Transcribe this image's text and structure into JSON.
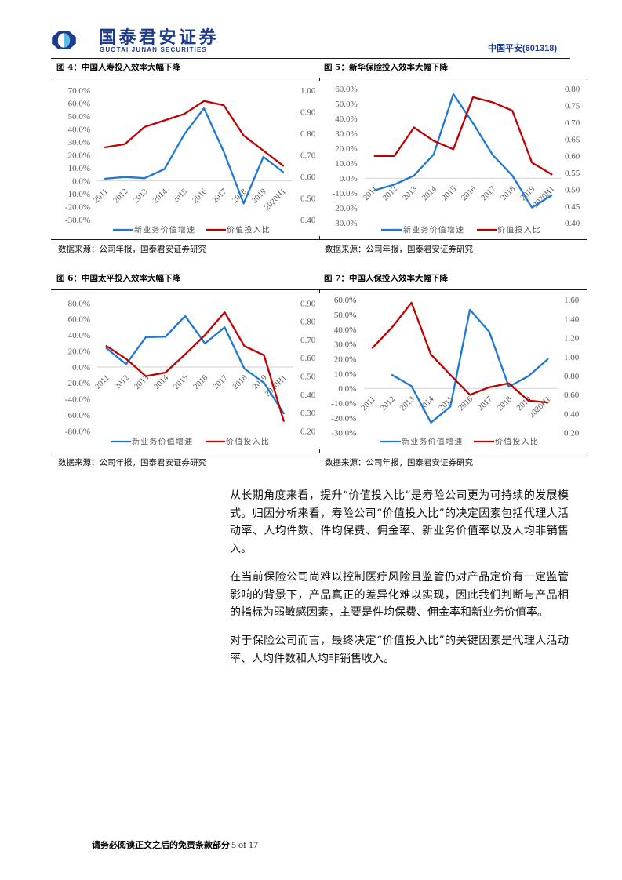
{
  "header": {
    "logo_icon": "guotai-junan-logo-icon",
    "brand_cn": "国泰君安证券",
    "brand_en": "GUOTAI JUNAN SECURITIES",
    "stock": "中国平安(601318)"
  },
  "colors": {
    "brand_navy": "#1d3c8f",
    "brand_light_blue": "#5bbde6",
    "series_blue": "#1f78d1",
    "series_red": "#c00000",
    "axis_text": "#595959",
    "zero_line": "#d9d9d9"
  },
  "figures": [
    {
      "title": "图 4：中国人寿投入效率大幅下降",
      "source": "数据来源：公司年报，国泰君安证券研究"
    },
    {
      "title": "图 5：新华保险投入效率大幅下降",
      "source": "数据来源：公司年报，国泰君安证券研究"
    },
    {
      "title": "图 6：中国太平投入效率大幅下降",
      "source": "数据来源：公司年报，国泰君安证券研究"
    },
    {
      "title": "图 7：中国人保投入效率大幅下降",
      "source": "数据来源：公司年报，国泰君安证券研究"
    }
  ],
  "body": {
    "paragraphs": [
      {
        "lines": [
          "从长期角度来看，提升“价值投入比”是寿险公司更为可持续的发展模",
          "式。归因分析来看，寿险公司“价值投入比”的决定因素包括代理人活",
          "动率、人均件数、件均保费、佣金率、新业务价值率以及人均非销售收",
          "入。"
        ]
      },
      {
        "lines": [
          "在当前保险公司尚难以控制医疗风险且监管仍对产品定价有一定监管",
          "影响的背景下，产品真正的差异化难以实现，因此我们判断与产品相关",
          "的指标为弱敏感因素，主要是件均保费、佣金率和新业务价值率。"
        ]
      },
      {
        "lines": [
          "对于保险公司而言，最终决定“价值投入比”的关键因素是代理人活动",
          "率、人均件数和人均非销售收入。"
        ]
      }
    ]
  },
  "footer": {
    "disclaimer": "请务必阅读正文之后的免责条款部分",
    "page": "5 of 17"
  },
  "chart_data": [
    {
      "type": "line",
      "title": "图 4：中国人寿投入效率大幅下降",
      "categories": [
        "2011",
        "2012",
        "2013",
        "2014",
        "2015",
        "2016",
        "2017",
        "2018",
        "2019",
        "2020H1"
      ],
      "series": [
        {
          "name": "新业务价值增速",
          "axis": "left",
          "unit": "%",
          "color": "#1f78d1",
          "values": [
            1.6,
            2.9,
            2.0,
            9.0,
            35.9,
            56.0,
            22.5,
            -17.5,
            18.5,
            6.7
          ]
        },
        {
          "name": "价值投入比",
          "axis": "right",
          "color": "#c00000",
          "values": [
            0.735,
            0.75,
            0.83,
            0.86,
            0.89,
            0.95,
            0.93,
            0.79,
            0.72,
            0.65
          ]
        }
      ],
      "y_left": {
        "min": -30,
        "max": 70,
        "tick_labels": [
          "70.0%",
          "60.0%",
          "50.0%",
          "40.0%",
          "30.0%",
          "20.0%",
          "10.0%",
          "0.0%",
          "-10.0%",
          "-20.0%",
          "-30.0%"
        ]
      },
      "y_right": {
        "min": 0.4,
        "max": 1.0,
        "tick_labels": [
          "1.00",
          "0.90",
          "0.80",
          "0.70",
          "0.60",
          "0.50",
          "0.40"
        ]
      },
      "xlabel": "",
      "ylabel": "",
      "grid": false,
      "zero_line": true,
      "legend_position": "bottom"
    },
    {
      "type": "line",
      "title": "图 5：新华保险投入效率大幅下降",
      "categories": [
        "2011",
        "2012",
        "2013",
        "2014",
        "2015",
        "2016",
        "2017",
        "2018",
        "2019",
        "2020H1"
      ],
      "series": [
        {
          "name": "新业务价值增速",
          "axis": "left",
          "unit": "%",
          "color": "#1f78d1",
          "values": [
            -8.1,
            -4.2,
            1.8,
            16.0,
            56.5,
            37.0,
            15.7,
            1.8,
            -19.7,
            -11.4
          ]
        },
        {
          "name": "价值投入比",
          "axis": "right",
          "color": "#c00000",
          "values": [
            0.6,
            0.6,
            0.685,
            0.645,
            0.62,
            0.775,
            0.76,
            0.735,
            0.58,
            0.545
          ]
        }
      ],
      "y_left": {
        "min": -30,
        "max": 60,
        "tick_labels": [
          "60.0%",
          "50.0%",
          "40.0%",
          "30.0%",
          "20.0%",
          "10.0%",
          "0.0%",
          "-10.0%",
          "-20.0%",
          "-30.0%"
        ]
      },
      "y_right": {
        "min": 0.4,
        "max": 0.8,
        "tick_labels": [
          "0.80",
          "0.75",
          "0.70",
          "0.65",
          "0.60",
          "0.55",
          "0.50",
          "0.45",
          "0.40"
        ]
      },
      "xlabel": "",
      "ylabel": "",
      "grid": false,
      "zero_line": true,
      "legend_position": "bottom"
    },
    {
      "type": "line",
      "title": "图 6：中国太平投入效率大幅下降",
      "categories": [
        "2011",
        "2012",
        "2013",
        "2014",
        "2015",
        "2016",
        "2017",
        "2018",
        "2019",
        "2020H1"
      ],
      "series": [
        {
          "name": "新业务价值增速",
          "axis": "left",
          "unit": "%",
          "color": "#1f78d1",
          "values": [
            23.6,
            3.6,
            37.4,
            38.0,
            63.9,
            29.5,
            49.8,
            -2.0,
            -19.7,
            -58.0
          ]
        },
        {
          "name": "价值投入比",
          "axis": "right",
          "color": "#c00000",
          "values": [
            0.665,
            0.595,
            0.5,
            0.52,
            0.62,
            0.725,
            0.85,
            0.665,
            0.615,
            0.255
          ]
        }
      ],
      "y_left": {
        "min": -80,
        "max": 80,
        "tick_labels": [
          "80.0%",
          "60.0%",
          "40.0%",
          "20.0%",
          "0.0%",
          "-20.0%",
          "-40.0%",
          "-60.0%",
          "-80.0%"
        ]
      },
      "y_right": {
        "min": 0.2,
        "max": 0.9,
        "tick_labels": [
          "0.90",
          "0.80",
          "0.70",
          "0.60",
          "0.50",
          "0.40",
          "0.30",
          "0.20"
        ]
      },
      "xlabel": "",
      "ylabel": "",
      "grid": false,
      "zero_line": true,
      "legend_position": "bottom"
    },
    {
      "type": "line",
      "title": "图 7：中国人保投入效率大幅下降",
      "categories": [
        "2011",
        "2012",
        "2013",
        "2014",
        "2015",
        "2016",
        "2017",
        "2018",
        "2019",
        "2020H1"
      ],
      "series": [
        {
          "name": "新业务价值增速",
          "axis": "left",
          "unit": "%",
          "color": "#1f78d1",
          "values": [
            null,
            9.2,
            1.6,
            -23.1,
            -12.3,
            53.3,
            38.3,
            1.2,
            8.3,
            19.8
          ]
        },
        {
          "name": "价值投入比",
          "axis": "right",
          "color": "#c00000",
          "values": [
            1.095,
            1.31,
            1.57,
            1.025,
            0.81,
            0.6,
            0.68,
            0.72,
            0.54,
            0.52
          ]
        }
      ],
      "y_left": {
        "min": -30,
        "max": 60,
        "tick_labels": [
          "60.0%",
          "50.0%",
          "40.0%",
          "30.0%",
          "20.0%",
          "10.0%",
          "0.0%",
          "-10.0%",
          "-20.0%",
          "-30.0%"
        ]
      },
      "y_right": {
        "min": 0.2,
        "max": 1.6,
        "tick_labels": [
          "1.60",
          "1.40",
          "1.20",
          "1.00",
          "0.80",
          "0.60",
          "0.40",
          "0.20"
        ]
      },
      "xlabel": "",
      "ylabel": "",
      "grid": false,
      "zero_line": true,
      "legend_position": "bottom"
    }
  ]
}
